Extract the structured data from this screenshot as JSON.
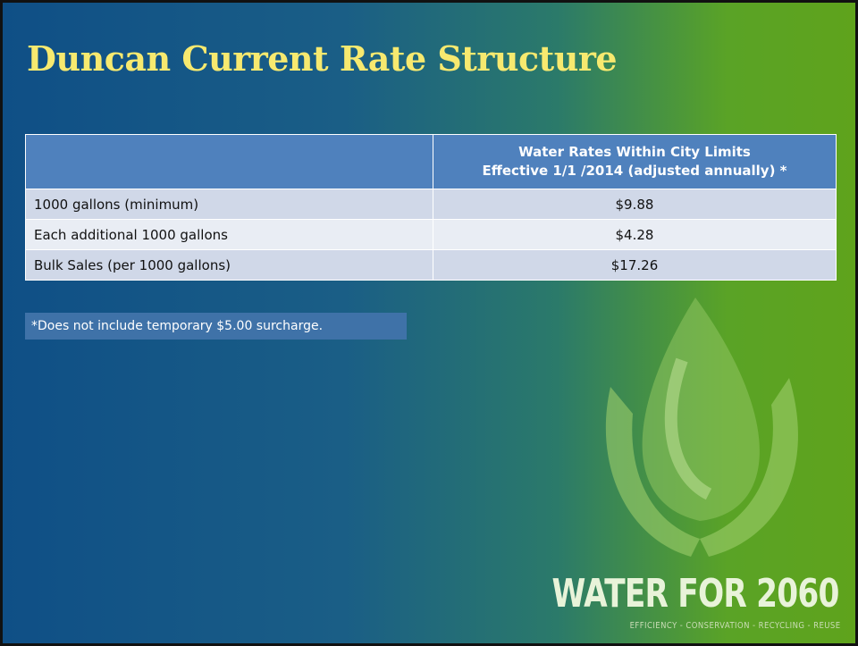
{
  "title": "Duncan Current Rate Structure",
  "table": {
    "header": [
      "Water Rates Within City Limits",
      "Effective 1/1 /2014 (adjusted annually) *"
    ],
    "rows": [
      [
        "1000 gallons (minimum)",
        "$9.88"
      ],
      [
        "Each additional 1000 gallons",
        "$4.28"
      ],
      [
        "Bulk Sales (per 1000 gallons)",
        "$17.26"
      ]
    ]
  },
  "footnote": "*Does not include temporary $5.00 surcharge.",
  "logo": {
    "title": "WATER FOR 2060",
    "tagline": "EFFICIENCY - CONSERVATION - RECYCLING - REUSE"
  }
}
